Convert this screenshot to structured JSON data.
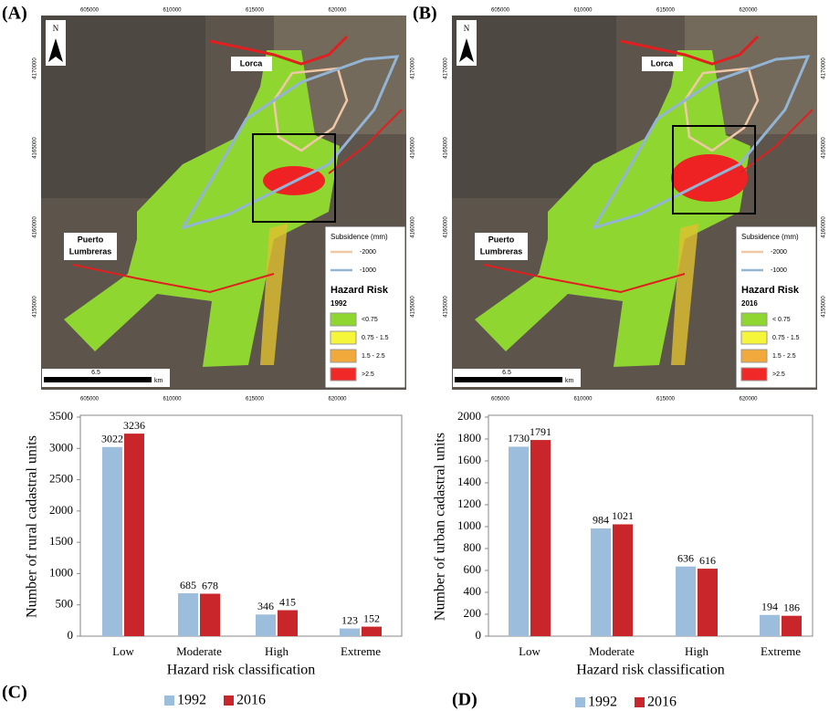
{
  "maps": [
    {
      "label": "(A)",
      "north": "N",
      "x_coords": [
        605000,
        610000,
        615000,
        620000
      ],
      "y_coords": [
        4170000,
        4165000,
        4160000,
        4155000
      ],
      "places": {
        "lorca": "Lorca",
        "puerto": [
          "Puerto",
          "Lumbreras"
        ]
      },
      "scale": "6.5",
      "scale_unit": "km",
      "legend": {
        "subsidence_title": "Subsidence (mm)",
        "subsidence_items": [
          "-2000",
          "-1000"
        ],
        "risk_title": "Hazard Risk",
        "year": "1992",
        "classes": [
          "<0.75",
          "0.75 - 1.5",
          "1.5 - 2.5",
          ">2.5"
        ]
      }
    },
    {
      "label": "(B)",
      "north": "N",
      "x_coords": [
        605000,
        610000,
        615000,
        620000
      ],
      "y_coords": [
        4170000,
        4165000,
        4160000,
        4155000
      ],
      "places": {
        "lorca": "Lorca",
        "puerto": [
          "Puerto",
          "Lumbreras"
        ]
      },
      "scale": "6.5",
      "scale_unit": "km",
      "legend": {
        "subsidence_title": "Subsidence (mm)",
        "subsidence_items": [
          "-2000",
          "-1000"
        ],
        "risk_title": "Hazard Risk",
        "year": "2016",
        "classes": [
          "< 0.75",
          "0.75 - 1.5",
          "1.5 - 2.5",
          ">2.5"
        ]
      }
    }
  ],
  "chart_data": [
    {
      "type": "bar",
      "panel_label": "(C)",
      "x_label": "Hazard risk classification",
      "y_label": "Number of rural cadastral units",
      "categories": [
        "Low",
        "Moderate",
        "High",
        "Extreme"
      ],
      "series": [
        {
          "name": "1992",
          "color": "#9dbddc",
          "values": [
            3022,
            685,
            346,
            123
          ]
        },
        {
          "name": "2016",
          "color": "#c8262b",
          "values": [
            3236,
            678,
            415,
            152
          ]
        }
      ],
      "ylim": [
        0,
        3500
      ],
      "yticks": [
        0,
        500,
        1000,
        1500,
        2000,
        2500,
        3000,
        3500
      ]
    },
    {
      "type": "bar",
      "panel_label": "(D)",
      "x_label": "Hazard risk classification",
      "y_label": "Number of urban cadastral units",
      "categories": [
        "Low",
        "Moderate",
        "High",
        "Extreme"
      ],
      "series": [
        {
          "name": "1992",
          "color": "#9dbddc",
          "values": [
            1730,
            984,
            636,
            194
          ]
        },
        {
          "name": "2016",
          "color": "#c8262b",
          "values": [
            1791,
            1021,
            616,
            186
          ]
        }
      ],
      "ylim": [
        0,
        2000
      ],
      "yticks": [
        0,
        200,
        400,
        600,
        800,
        1000,
        1200,
        1400,
        1600,
        1800,
        2000
      ]
    }
  ]
}
